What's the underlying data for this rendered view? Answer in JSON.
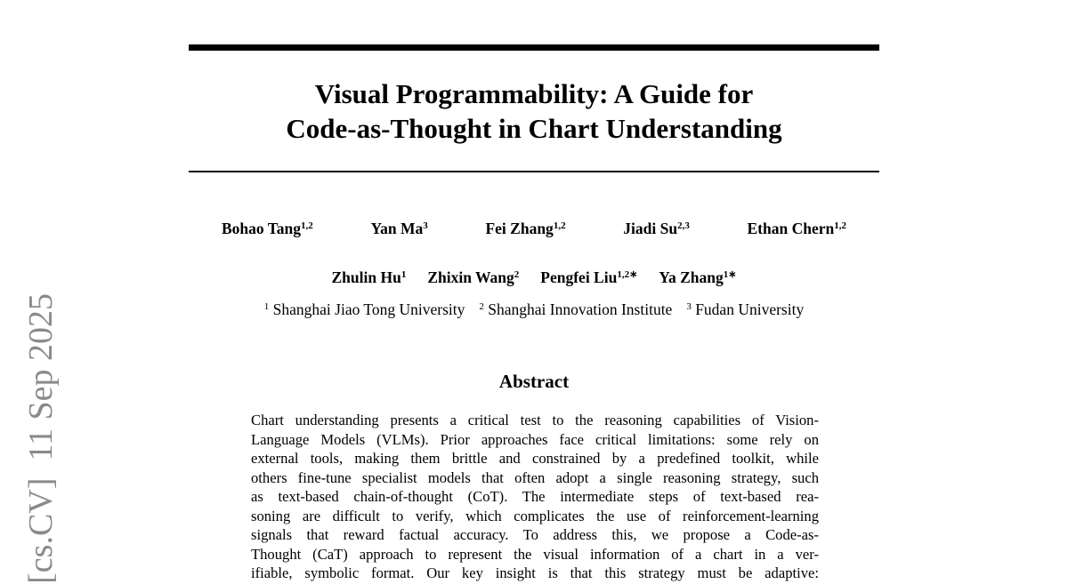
{
  "side_stamp": "[cs.CV]  11 Sep 2025",
  "title": {
    "lines": [
      "Visual Programmability: A Guide for",
      "Code-as-Thought in Chart Understanding"
    ]
  },
  "authors": {
    "row1": [
      {
        "name": "Bohao Tang",
        "sup": "1,2"
      },
      {
        "name": "Yan Ma",
        "sup": "3"
      },
      {
        "name": "Fei Zhang",
        "sup": "1,2"
      },
      {
        "name": "Jiadi Su",
        "sup": "2,3"
      },
      {
        "name": "Ethan Chern",
        "sup": "1,2"
      }
    ],
    "row2": [
      {
        "name": "Zhulin Hu",
        "sup": "1"
      },
      {
        "name": "Zhixin Wang",
        "sup": "2"
      },
      {
        "name": "Pengfei Liu",
        "sup": "1,2∗"
      },
      {
        "name": "Ya Zhang",
        "sup": "1∗"
      }
    ]
  },
  "affiliations": [
    {
      "sup": "1",
      "name": "Shanghai Jiao Tong University"
    },
    {
      "sup": "2",
      "name": "Shanghai Innovation Institute"
    },
    {
      "sup": "3",
      "name": "Fudan University"
    }
  ],
  "abstract": {
    "heading": "Abstract",
    "lines": [
      "Chart understanding presents a critical test to the reasoning capabilities of Vision-",
      "Language Models (VLMs). Prior approaches face critical limitations: some rely on",
      "external tools, making them brittle and constrained by a predefined toolkit, while",
      "others fine-tune specialist models that often adopt a single reasoning strategy, such",
      "as text-based chain-of-thought (CoT). The intermediate steps of text-based rea-",
      "soning are difficult to verify, which complicates the use of reinforcement-learning",
      "signals that reward factual accuracy.  To address this, we propose a Code-as-",
      "Thought (CaT) approach to represent the visual information of a chart in a ver-",
      "ifiable, symbolic format. Our key insight is that this strategy must be adaptive:"
    ]
  }
}
